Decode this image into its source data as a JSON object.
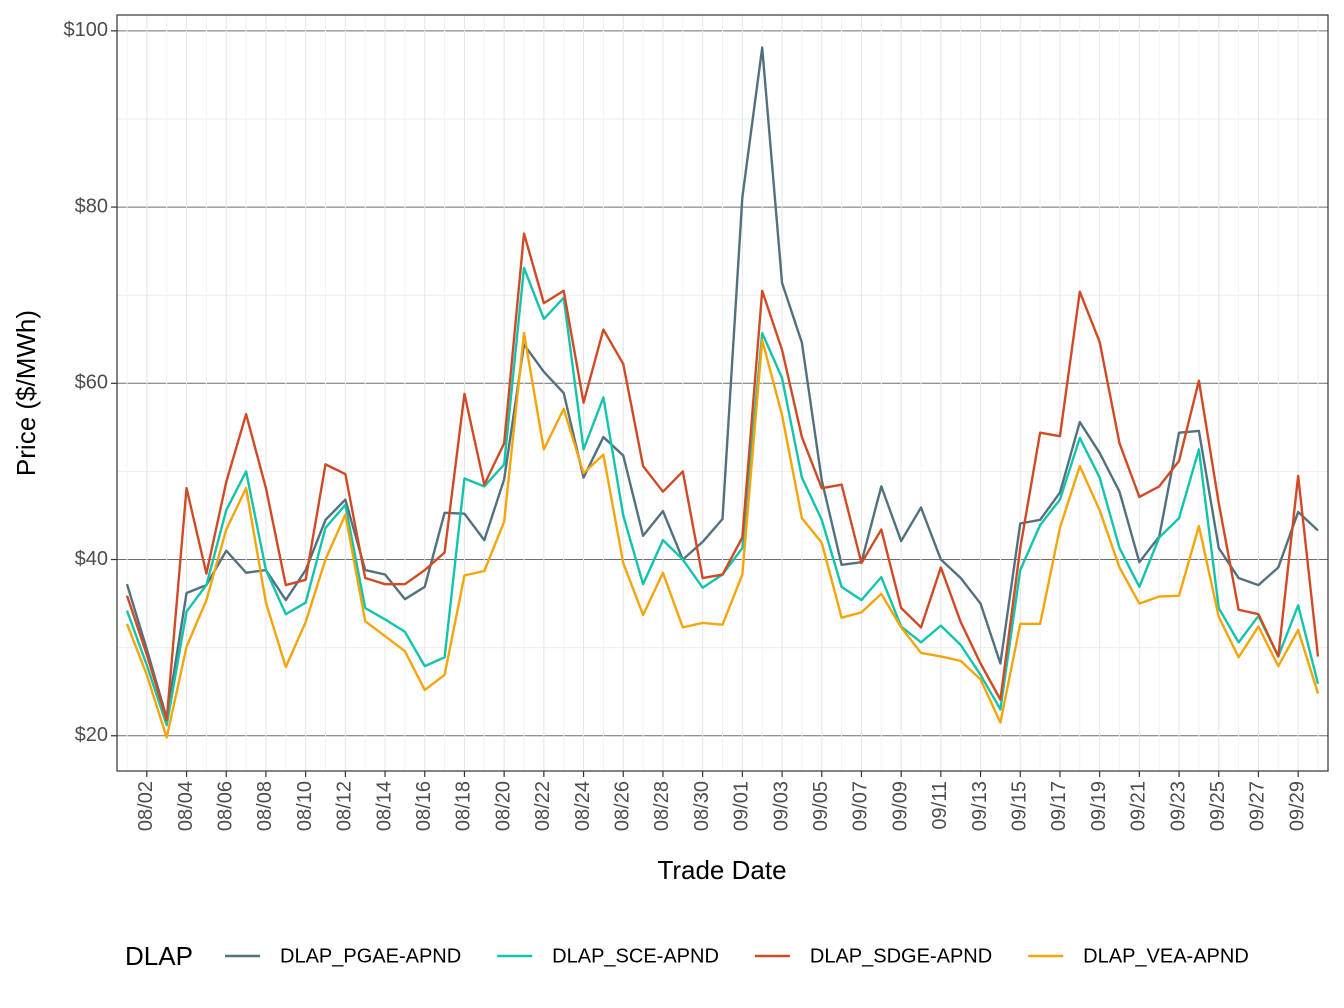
{
  "chart_data": {
    "type": "line",
    "x_label": "Trade Date",
    "y_label": "Price ($/MWh)",
    "legend_title": "DLAP",
    "legend_position": "bottom",
    "grid": true,
    "categories": [
      null,
      "08/02",
      null,
      "08/04",
      null,
      "08/06",
      null,
      "08/08",
      null,
      "08/10",
      null,
      "08/12",
      null,
      "08/14",
      null,
      "08/16",
      null,
      "08/18",
      null,
      "08/20",
      null,
      "08/22",
      null,
      "08/24",
      null,
      "08/26",
      null,
      "08/28",
      null,
      "08/30",
      null,
      "09/01",
      null,
      "09/03",
      null,
      "09/05",
      null,
      "09/07",
      null,
      "09/09",
      null,
      "09/11",
      null,
      "09/13",
      null,
      "09/15",
      null,
      "09/17",
      null,
      "09/19",
      null,
      "09/21",
      null,
      "09/23",
      null,
      "09/25",
      null,
      "09/27",
      null,
      "09/29",
      null
    ],
    "ylim": [
      16,
      101.8
    ],
    "yticks": [
      {
        "value": 20,
        "label": "$20"
      },
      {
        "value": 40,
        "label": "$40"
      },
      {
        "value": 60,
        "label": "$60"
      },
      {
        "value": 80,
        "label": "$80"
      },
      {
        "value": 100,
        "label": "$100"
      }
    ],
    "series": [
      {
        "name": "DLAP_PGAE-APND",
        "color": "#52717f",
        "values": [
          37.2,
          29.8,
          22.0,
          36.2,
          37.1,
          41.0,
          38.5,
          38.8,
          35.4,
          38.8,
          44.5,
          46.8,
          38.8,
          38.3,
          35.5,
          36.9,
          45.3,
          45.2,
          42.2,
          49.1,
          64.4,
          61.3,
          58.9,
          49.3,
          53.9,
          51.8,
          42.7,
          45.5,
          40.0,
          42.0,
          44.6,
          81.1,
          98.1,
          71.4,
          64.6,
          49.0,
          39.4,
          39.7,
          48.3,
          42.1,
          45.9,
          40.0,
          37.9,
          35.0,
          28.2,
          44.1,
          44.5,
          47.6,
          55.6,
          52.1,
          47.7,
          39.7,
          42.6,
          54.4,
          54.6,
          41.3,
          37.9,
          37.1,
          39.1,
          45.4,
          43.3
        ]
      },
      {
        "name": "DLAP_SCE-APND",
        "color": "#13c4ad",
        "values": [
          34.2,
          28.0,
          21.2,
          34.1,
          37.1,
          45.6,
          50.0,
          38.8,
          33.8,
          35.1,
          43.6,
          46.2,
          34.5,
          33.2,
          31.8,
          27.9,
          28.9,
          49.2,
          48.3,
          50.8,
          73.1,
          67.3,
          69.7,
          52.5,
          58.4,
          45.0,
          37.2,
          42.2,
          40.0,
          36.8,
          38.3,
          41.3,
          65.7,
          60.6,
          49.3,
          44.5,
          36.9,
          35.4,
          38.0,
          32.4,
          30.6,
          32.5,
          30.3,
          26.9,
          23.0,
          38.8,
          43.9,
          46.8,
          53.8,
          49.3,
          41.3,
          36.9,
          42.5,
          44.7,
          52.5,
          34.5,
          30.6,
          33.6,
          29.0,
          34.8,
          25.9
        ]
      },
      {
        "name": "DLAP_SDGE-APND",
        "color": "#cf4a25",
        "values": [
          35.9,
          29.2,
          21.8,
          48.1,
          38.4,
          48.8,
          56.5,
          48.1,
          37.1,
          37.7,
          50.8,
          49.7,
          37.9,
          37.2,
          37.2,
          38.8,
          40.8,
          58.8,
          48.5,
          53.2,
          77.0,
          69.1,
          70.5,
          57.8,
          66.1,
          62.2,
          50.6,
          47.7,
          50.0,
          37.9,
          38.3,
          42.5,
          70.5,
          63.8,
          53.9,
          48.1,
          48.5,
          39.6,
          43.4,
          34.5,
          32.3,
          39.1,
          32.9,
          28.2,
          24.1,
          41.3,
          54.4,
          54.0,
          70.4,
          64.7,
          53.2,
          47.1,
          48.3,
          51.2,
          60.3,
          46.4,
          34.3,
          33.8,
          29.0,
          49.5,
          29.0
        ]
      },
      {
        "name": "DLAP_VEA-APND",
        "color": "#f5a50a",
        "values": [
          32.7,
          26.9,
          19.8,
          30.1,
          35.4,
          43.4,
          48.1,
          35.1,
          27.8,
          32.9,
          40.0,
          45.1,
          33.0,
          31.3,
          29.6,
          25.2,
          26.9,
          38.2,
          38.7,
          44.3,
          65.7,
          52.5,
          57.1,
          49.8,
          51.9,
          39.6,
          33.7,
          38.5,
          32.3,
          32.8,
          32.6,
          38.3,
          64.9,
          56.4,
          44.7,
          41.9,
          33.4,
          34.0,
          36.1,
          32.3,
          29.4,
          29.0,
          28.5,
          26.4,
          21.5,
          32.7,
          32.7,
          43.6,
          50.6,
          45.6,
          39.1,
          35.0,
          35.8,
          35.9,
          43.8,
          33.5,
          28.9,
          32.4,
          27.9,
          32.0,
          24.8
        ]
      }
    ]
  }
}
